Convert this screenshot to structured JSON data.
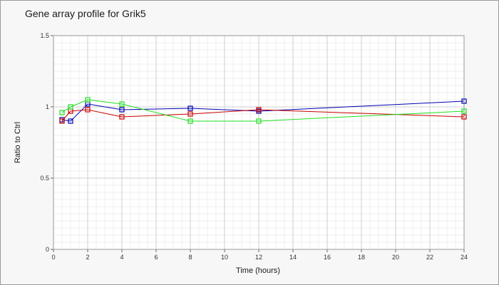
{
  "chart_data": {
    "type": "line",
    "title": "Gene array profile for Grik5",
    "xlabel": "Time (hours)",
    "ylabel": "Ratio to Ctrl",
    "xlim": [
      0,
      24
    ],
    "ylim": [
      0,
      1.5
    ],
    "x_ticks": [
      "0",
      "2",
      "4",
      "6",
      "8",
      "10",
      "12",
      "14",
      "16",
      "18",
      "20",
      "22",
      "24"
    ],
    "y_ticks": [
      "0",
      "0.5",
      "1",
      "1.5"
    ],
    "grid": true,
    "legend": "none",
    "x": [
      0.5,
      1,
      2,
      4,
      8,
      12,
      24
    ],
    "series": [
      {
        "color": "#0000b4",
        "values": [
          0.91,
          0.9,
          1.02,
          0.98,
          0.99,
          0.97,
          1.04
        ]
      },
      {
        "color": "#c80000",
        "values": [
          0.9,
          0.97,
          0.98,
          0.93,
          0.95,
          0.98,
          0.93
        ]
      },
      {
        "color": "#1ee01e",
        "values": [
          0.96,
          1.0,
          1.05,
          1.02,
          0.9,
          0.9,
          0.97
        ]
      }
    ]
  }
}
